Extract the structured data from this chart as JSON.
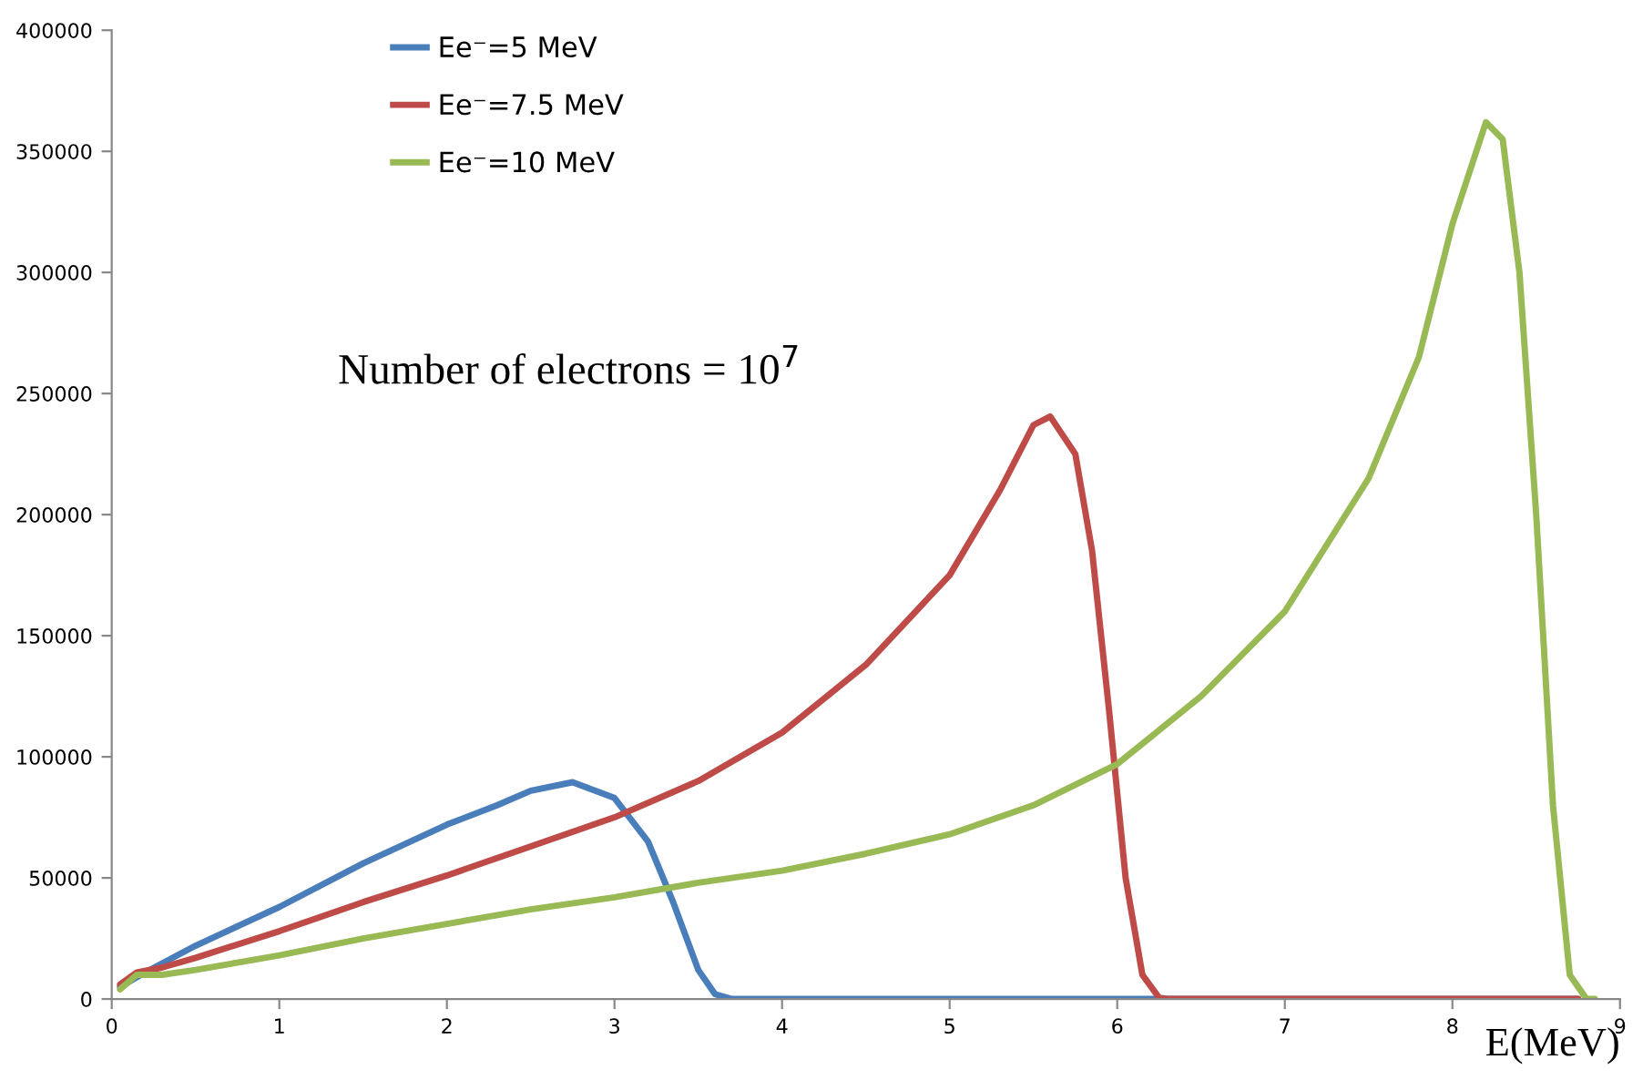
{
  "chart_data": {
    "type": "line",
    "xlabel": "E(MeV)",
    "xlim": [
      0,
      9
    ],
    "xticks": [
      0,
      1,
      2,
      3,
      4,
      5,
      6,
      7,
      8,
      9
    ],
    "ylim": [
      0,
      400000
    ],
    "yticks": [
      0,
      50000,
      100000,
      150000,
      200000,
      250000,
      300000,
      350000,
      400000
    ],
    "grid": false,
    "legend": "top left",
    "line_style": "solid",
    "annotations": [
      "Number of electrons = 10$^{7}$"
    ],
    "series": [
      {
        "name": "Ee⁻=5 MeV",
        "color": "#4a7ebb",
        "x": [
          0.05,
          0.2,
          0.5,
          1,
          1.5,
          2,
          2.3,
          2.5,
          2.75,
          3.0,
          3.2,
          3.35,
          3.5,
          3.6,
          3.7,
          8.75
        ],
        "values": [
          5000,
          11000,
          22000,
          38000,
          56000,
          72000,
          80000,
          86000,
          89500,
          83000,
          65000,
          40000,
          12000,
          2000,
          0,
          0
        ]
      },
      {
        "name": "Ee⁻=7.5 MeV",
        "color": "#be4b48",
        "x": [
          0.05,
          0.15,
          0.3,
          0.5,
          1,
          1.5,
          2,
          2.5,
          3,
          3.5,
          4,
          4.5,
          5,
          5.3,
          5.5,
          5.6,
          5.75,
          5.85,
          5.95,
          6.05,
          6.15,
          6.25,
          6.3,
          8.75
        ],
        "values": [
          6000,
          11000,
          13000,
          17000,
          28000,
          40000,
          51000,
          63000,
          75000,
          90000,
          110000,
          138000,
          175000,
          210000,
          237000,
          240500,
          225000,
          185000,
          120000,
          50000,
          10000,
          500,
          0,
          0
        ]
      },
      {
        "name": "Ee⁻=10 MeV",
        "color": "#98b954",
        "x": [
          0.05,
          0.15,
          0.3,
          0.5,
          1,
          1.5,
          2,
          2.5,
          3,
          3.5,
          4,
          4.5,
          5,
          5.5,
          6,
          6.5,
          7,
          7.5,
          7.8,
          8.0,
          8.2,
          8.3,
          8.4,
          8.5,
          8.6,
          8.7,
          8.8,
          8.85
        ],
        "values": [
          4000,
          10000,
          10000,
          12000,
          18000,
          25000,
          31000,
          37000,
          42000,
          48000,
          53000,
          60000,
          68000,
          80000,
          97000,
          125000,
          160000,
          215000,
          265000,
          320000,
          362000,
          355000,
          300000,
          200000,
          80000,
          10000,
          0,
          0
        ]
      }
    ]
  }
}
